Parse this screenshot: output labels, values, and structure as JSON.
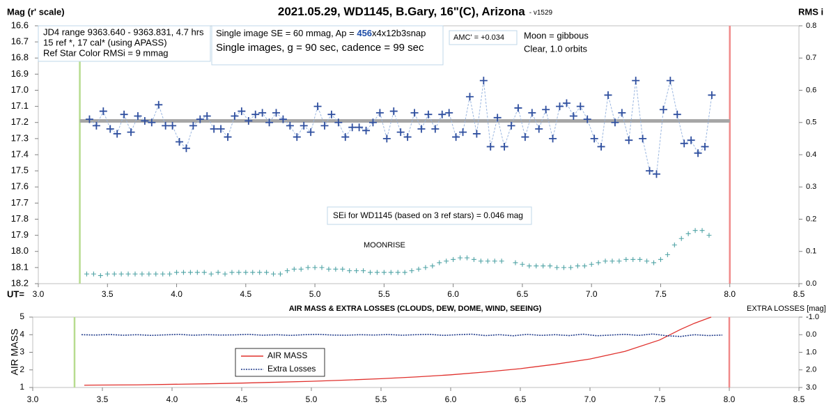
{
  "chart_data": [
    {
      "type": "scatter",
      "title": "2021.05.29, WD1145, B.Gary, 16\"(C), Arizona",
      "version": "- v1529",
      "ylabel": "Mag (r' scale)",
      "y2label": "RMS i",
      "xlabel": "UT=",
      "xlim": [
        3.0,
        8.5
      ],
      "xticks": [
        {
          "value": 3.0,
          "label": "3.0"
        },
        3.5,
        {
          "value": 4.0,
          "label": "4.0"
        },
        4.5,
        {
          "value": 5.0,
          "label": "5.0"
        },
        5.5,
        {
          "value": 6.0,
          "label": "6.0"
        },
        6.5,
        {
          "value": 7.0,
          "label": "7.0"
        },
        7.5,
        {
          "value": 8.0,
          "label": "8.0"
        },
        8.5
      ],
      "ylim": [
        16.6,
        18.2
      ],
      "y_inverted": true,
      "yticks": [
        16.6,
        16.7,
        16.8,
        16.9,
        {
          "value": 17.0,
          "label": "17.0"
        },
        17.1,
        17.2,
        17.3,
        17.4,
        17.5,
        17.6,
        17.7,
        17.8,
        17.9,
        {
          "value": 18.0,
          "label": "18.0"
        },
        18.1,
        18.2
      ],
      "y2lim": [
        0.0,
        0.8
      ],
      "y2ticks": [
        {
          "value": 0.0,
          "label": "0.0"
        },
        0.1,
        0.2,
        0.3,
        0.4,
        0.5,
        0.6,
        0.7,
        0.8
      ],
      "reference_level": {
        "value": 17.19,
        "x": [
          3.3,
          8.0
        ],
        "color": "#a6a6a6"
      },
      "vlines": [
        {
          "value": 3.3,
          "color": "#b7dc8f"
        },
        {
          "value": 8.0,
          "color": "#f08a8a"
        }
      ],
      "series": [
        {
          "style": "plus-dashed",
          "color": "#2f4f9f",
          "line_color": "#9ab6e0",
          "x": [
            3.37,
            3.42,
            3.47,
            3.52,
            3.57,
            3.62,
            3.67,
            3.72,
            3.77,
            3.82,
            3.87,
            3.92,
            3.97,
            4.02,
            4.07,
            4.12,
            4.17,
            4.22,
            4.27,
            4.32,
            4.37,
            4.42,
            4.47,
            4.52,
            4.57,
            4.62,
            4.67,
            4.72,
            4.77,
            4.82,
            4.87,
            4.92,
            4.97,
            5.02,
            5.07,
            5.12,
            5.17,
            5.22,
            5.27,
            5.32,
            5.37,
            5.42,
            5.47,
            5.52,
            5.57,
            5.62,
            5.67,
            5.72,
            5.77,
            5.82,
            5.87,
            5.92,
            5.97,
            6.02,
            6.07,
            6.12,
            6.17,
            6.22,
            6.27,
            6.32,
            6.37,
            6.42,
            6.47,
            6.52,
            6.57,
            6.62,
            6.67,
            6.72,
            6.77,
            6.82,
            6.87,
            6.92,
            6.97,
            7.02,
            7.07,
            7.12,
            7.17,
            7.22,
            7.27,
            7.32,
            7.37,
            7.42,
            7.47,
            7.52,
            7.57,
            7.62,
            7.67,
            7.72,
            7.77,
            7.82,
            7.87
          ],
          "values": [
            17.18,
            17.22,
            17.13,
            17.24,
            17.27,
            17.15,
            17.26,
            17.16,
            17.19,
            17.2,
            17.09,
            17.22,
            17.22,
            17.32,
            17.36,
            17.22,
            17.18,
            17.16,
            17.24,
            17.24,
            17.29,
            17.16,
            17.13,
            17.19,
            17.15,
            17.14,
            17.2,
            17.14,
            17.18,
            17.22,
            17.29,
            17.22,
            17.26,
            17.1,
            17.22,
            17.15,
            17.2,
            17.29,
            17.23,
            17.23,
            17.25,
            17.2,
            17.14,
            17.3,
            17.13,
            17.26,
            17.29,
            17.14,
            17.24,
            17.15,
            17.24,
            17.15,
            17.14,
            17.29,
            17.26,
            17.04,
            17.27,
            16.94,
            17.35,
            17.17,
            17.35,
            17.22,
            17.11,
            17.29,
            17.14,
            17.24,
            17.12,
            17.3,
            17.1,
            17.08,
            17.16,
            17.1,
            17.18,
            17.3,
            17.35,
            17.03,
            17.2,
            17.14,
            17.31,
            16.94,
            17.3,
            17.5,
            17.52,
            17.12,
            16.94,
            17.15,
            17.33,
            17.31,
            17.39,
            17.35,
            17.03
          ]
        },
        {
          "style": "small-plus",
          "color": "#4fa3a5",
          "axis": "y2",
          "x": [
            3.35,
            3.4,
            3.45,
            3.5,
            3.55,
            3.6,
            3.65,
            3.7,
            3.75,
            3.8,
            3.85,
            3.9,
            3.95,
            4.0,
            4.05,
            4.1,
            4.15,
            4.2,
            4.25,
            4.3,
            4.35,
            4.4,
            4.45,
            4.5,
            4.55,
            4.6,
            4.65,
            4.7,
            4.75,
            4.8,
            4.85,
            4.9,
            4.95,
            5.0,
            5.05,
            5.1,
            5.15,
            5.2,
            5.25,
            5.3,
            5.35,
            5.4,
            5.45,
            5.5,
            5.55,
            5.6,
            5.65,
            5.7,
            5.75,
            5.8,
            5.85,
            5.9,
            5.95,
            6.0,
            6.05,
            6.1,
            6.15,
            6.2,
            6.25,
            6.3,
            6.35,
            6.4,
            6.45,
            6.5,
            6.55,
            6.6,
            6.65,
            6.7,
            6.75,
            6.8,
            6.85,
            6.9,
            6.95,
            7.0,
            7.05,
            7.1,
            7.15,
            7.2,
            7.25,
            7.3,
            7.35,
            7.4,
            7.45,
            7.5,
            7.55,
            7.6,
            7.65,
            7.7,
            7.75,
            7.8,
            7.85
          ],
          "values": [
            0.03,
            0.03,
            0.025,
            0.03,
            0.03,
            0.03,
            0.03,
            0.03,
            0.03,
            0.03,
            0.03,
            0.03,
            0.03,
            0.035,
            0.035,
            0.035,
            0.035,
            0.035,
            0.03,
            0.035,
            0.03,
            0.035,
            0.035,
            0.035,
            0.035,
            0.035,
            0.035,
            0.03,
            0.03,
            0.04,
            0.045,
            0.045,
            0.05,
            0.05,
            0.05,
            0.045,
            0.045,
            0.045,
            0.04,
            0.04,
            0.04,
            0.035,
            0.035,
            0.035,
            0.035,
            0.035,
            0.035,
            0.04,
            0.045,
            0.05,
            0.055,
            0.065,
            0.07,
            0.075,
            0.08,
            0.08,
            0.075,
            0.07,
            0.07,
            0.07,
            0.07,
            null,
            0.065,
            0.06,
            0.055,
            0.055,
            0.055,
            0.055,
            0.05,
            0.05,
            0.05,
            0.055,
            0.055,
            0.06,
            0.065,
            0.07,
            0.07,
            0.07,
            0.075,
            0.075,
            0.075,
            0.07,
            0.065,
            0.075,
            0.09,
            0.12,
            0.14,
            0.155,
            0.165,
            0.165,
            0.15
          ]
        }
      ],
      "annotations": [
        [
          "JD4 range 9363.640 - 9363.831, 4.7 hrs",
          "15 ref *, 17 cal* (using APASS)",
          "Ref Star Color RMSi = 9 mmag"
        ],
        [
          [
            "Single image SE = 60 mmag, Ap = ",
            "456",
            "x4x12b3snap"
          ],
          "Single images, g = 90 sec, cadence = 99 sec"
        ],
        [
          "AMC' = +0.034"
        ],
        [
          "Moon = gibbous",
          "Clear, 1.0 orbits"
        ],
        [
          "SEi for WD1145 (based on 3 ref stars) = 0.046 mag"
        ],
        [
          "MOONRISE"
        ]
      ]
    },
    {
      "type": "line",
      "title": "AIR MASS & EXTRA LOSSES (CLOUDS, DEW, DOME, WIND, SEEING)",
      "ylabel": "AIR MASS",
      "y2label": "EXTRA LOSSES [mag]",
      "xlim": [
        3.0,
        8.5
      ],
      "xticks": [
        {
          "value": 3.0,
          "label": "3.0"
        },
        3.5,
        {
          "value": 4.0,
          "label": "4.0"
        },
        4.5,
        {
          "value": 5.0,
          "label": "5.0"
        },
        5.5,
        {
          "value": 6.0,
          "label": "6.0"
        },
        6.5,
        {
          "value": 7.0,
          "label": "7.0"
        },
        7.5,
        {
          "value": 8.0,
          "label": "8.0"
        },
        8.5
      ],
      "ylim": [
        1,
        5
      ],
      "yticks": [
        1,
        2,
        3,
        4,
        5
      ],
      "y2lim": [
        -1.0,
        3.0
      ],
      "y2_inverted": true,
      "y2ticks": [
        {
          "value": -1.0,
          "label": "-1.0"
        },
        {
          "value": 0.0,
          "label": "0.0"
        },
        {
          "value": 1.0,
          "label": "1.0"
        },
        {
          "value": 2.0,
          "label": "2.0"
        },
        {
          "value": 3.0,
          "label": "3.0"
        }
      ],
      "vlines": [
        {
          "value": 3.3,
          "color": "#b7dc8f"
        },
        {
          "value": 8.0,
          "color": "#f08a8a"
        }
      ],
      "series": [
        {
          "name": "AIR MASS",
          "style": "solid",
          "color": "#e0302c",
          "x": [
            3.37,
            3.5,
            3.75,
            4.0,
            4.25,
            4.5,
            4.75,
            5.0,
            5.25,
            5.5,
            5.75,
            6.0,
            6.25,
            6.5,
            6.75,
            7.0,
            7.25,
            7.5,
            7.65,
            7.75,
            7.87
          ],
          "values": [
            1.13,
            1.14,
            1.15,
            1.18,
            1.21,
            1.25,
            1.3,
            1.35,
            1.42,
            1.5,
            1.6,
            1.72,
            1.88,
            2.07,
            2.32,
            2.62,
            3.05,
            3.7,
            4.3,
            4.65,
            5.0
          ]
        },
        {
          "name": "Extra Losses",
          "style": "dotted",
          "color": "#1f3a8a",
          "axis": "y2",
          "x": [
            3.35,
            3.45,
            3.55,
            3.65,
            3.75,
            3.85,
            3.95,
            4.05,
            4.15,
            4.25,
            4.35,
            4.45,
            4.55,
            4.65,
            4.75,
            4.85,
            4.95,
            5.05,
            5.15,
            5.25,
            5.35,
            5.45,
            5.55,
            5.65,
            5.75,
            5.85,
            5.95,
            6.05,
            6.15,
            6.25,
            6.35,
            6.45,
            6.55,
            6.65,
            6.75,
            6.85,
            6.95,
            7.05,
            7.15,
            7.25,
            7.35,
            7.45,
            7.55,
            7.65,
            7.75,
            7.85,
            7.95
          ],
          "values": [
            0.0,
            0.02,
            -0.01,
            0.03,
            0.0,
            0.04,
            0.01,
            -0.02,
            0.03,
            0.0,
            0.02,
            0.01,
            -0.02,
            0.03,
            0.0,
            0.04,
            0.0,
            -0.02,
            0.02,
            0.03,
            0.0,
            0.02,
            -0.01,
            0.03,
            0.0,
            -0.02,
            0.04,
            0.0,
            -0.03,
            0.05,
            0.0,
            0.06,
            -0.02,
            0.04,
            0.0,
            0.05,
            -0.03,
            0.06,
            0.02,
            -0.02,
            0.04,
            -0.04,
            0.06,
            0.1,
            0.0,
            0.05,
            0.02
          ]
        }
      ]
    }
  ]
}
